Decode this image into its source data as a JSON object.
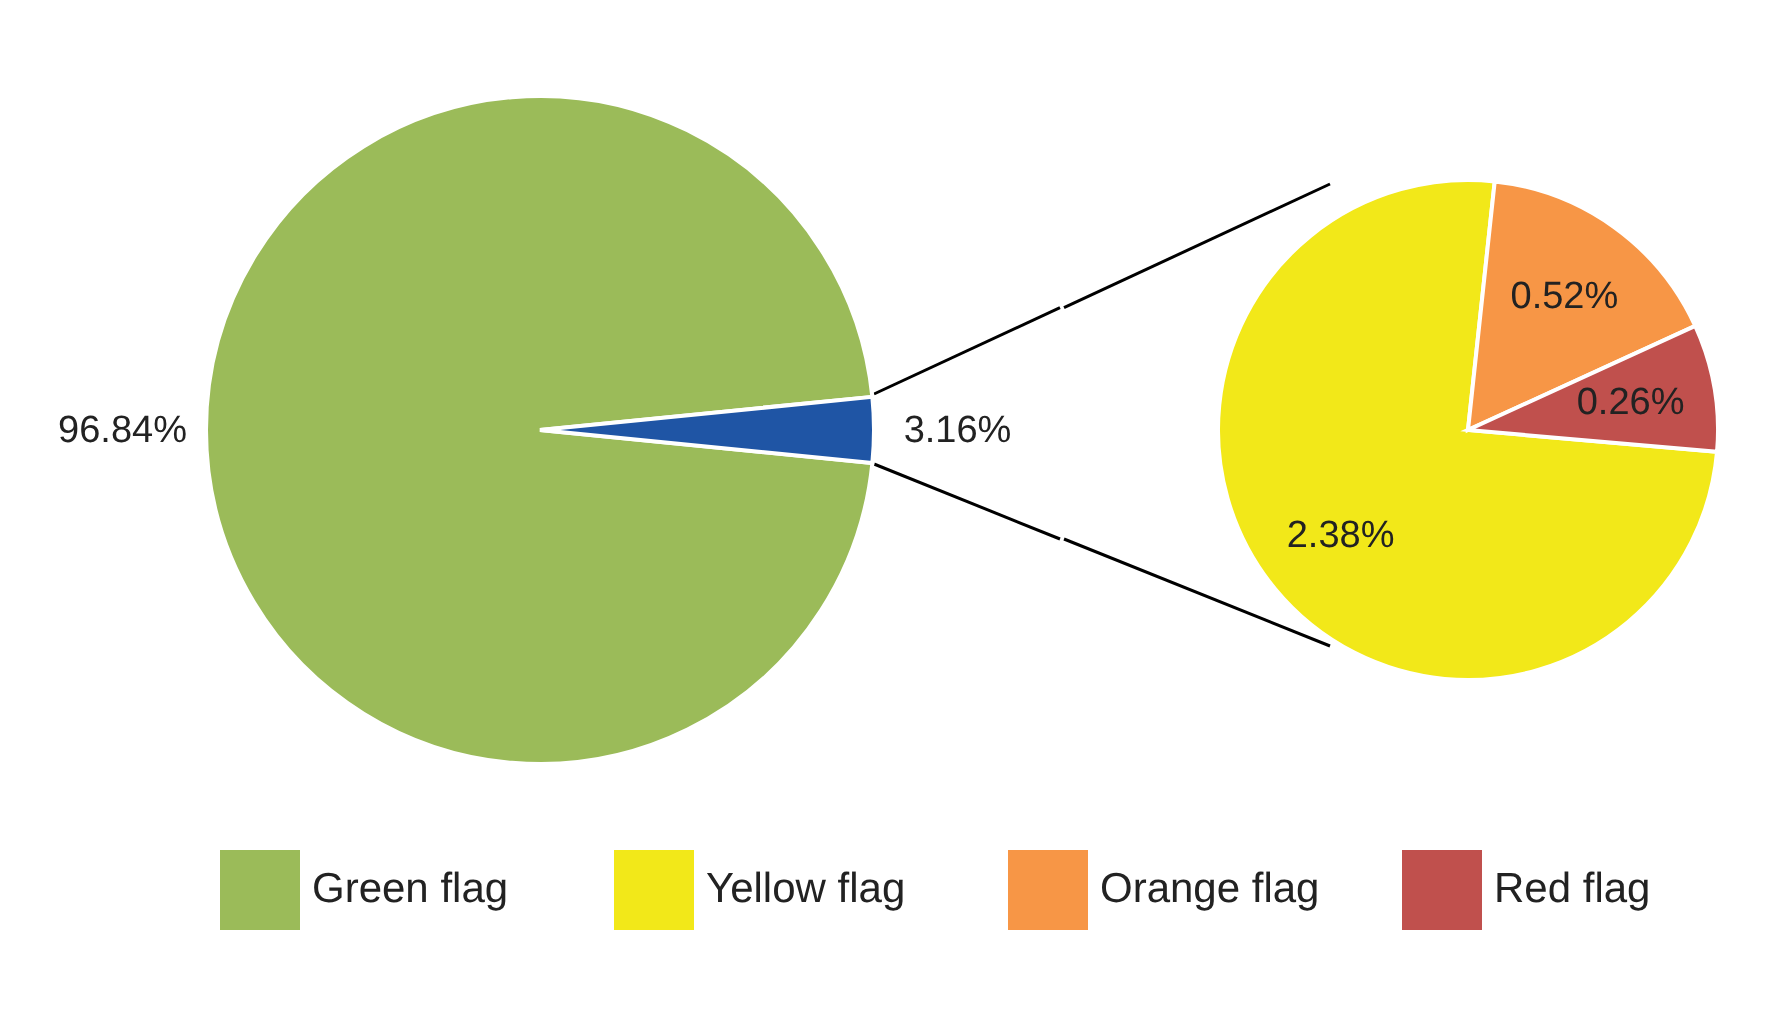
{
  "chart_data": [
    {
      "type": "pie",
      "categories": [
        "Green flag",
        null
      ],
      "values": [
        96.84,
        3.16
      ],
      "colors": [
        "#9bbb59",
        "#1f55a5"
      ],
      "value_labels": [
        "96.84%",
        "3.16%"
      ],
      "legend": "bottom"
    },
    {
      "type": "pie",
      "categories": [
        "Yellow flag",
        "Orange flag",
        "Red flag"
      ],
      "values": [
        2.38,
        0.52,
        0.26
      ],
      "colors": [
        "#f2e819",
        "#f79646",
        "#c0504d"
      ],
      "value_labels": [
        "2.38%",
        "0.52%",
        "0.26%"
      ],
      "legend": "bottom"
    }
  ]
}
